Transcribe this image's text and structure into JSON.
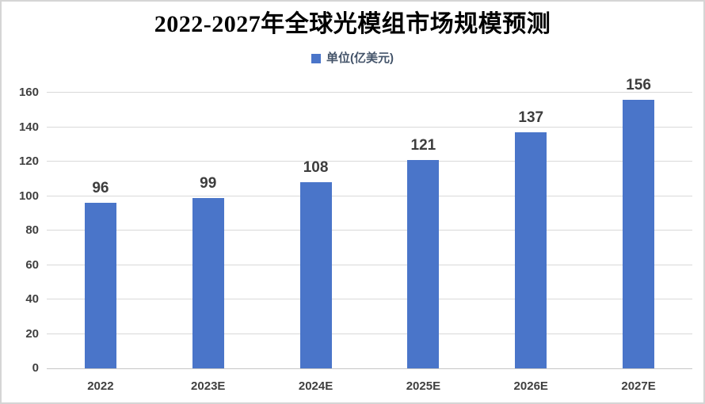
{
  "chart_data": {
    "type": "bar",
    "title": "2022-2027年全球光模组市场规模预测",
    "legend": "单位(亿美元)",
    "legend_position": "top",
    "categories": [
      "2022",
      "2023E",
      "2024E",
      "2025E",
      "2026E",
      "2027E"
    ],
    "values": [
      96,
      99,
      108,
      121,
      137,
      156
    ],
    "xlabel": "",
    "ylabel": "",
    "ylim": [
      0,
      160
    ],
    "yticks": [
      0,
      20,
      40,
      60,
      80,
      100,
      120,
      140,
      160
    ],
    "grid": true,
    "colors": {
      "bar": "#4a75c9",
      "title": "#000000",
      "legend_text": "#44546a",
      "axis_text": "#404040",
      "value_label": "#3d3d3d",
      "gridline": "#d9d9d9",
      "axis_line": "#c6c6c6"
    }
  }
}
